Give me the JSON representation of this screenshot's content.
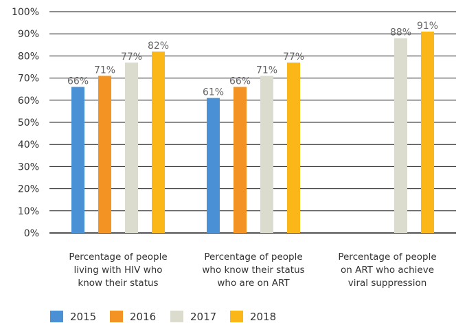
{
  "chart_data": {
    "type": "bar",
    "categories": [
      [
        "Percentage of people",
        "living with HIV who",
        "know their status"
      ],
      [
        "Percentage of people",
        "who know their status",
        "who are on ART"
      ],
      [
        "Percentage of people",
        "on ART who achieve",
        "viral suppression"
      ]
    ],
    "series": [
      {
        "name": "2015",
        "color": "#4a90d4",
        "values": [
          66,
          61,
          null
        ],
        "labels": [
          "66%",
          "61%",
          ""
        ]
      },
      {
        "name": "2016",
        "color": "#f39324",
        "values": [
          71,
          66,
          null
        ],
        "labels": [
          "71%",
          "66%",
          ""
        ]
      },
      {
        "name": "2017",
        "color": "#dcdcce",
        "values": [
          77,
          71,
          88
        ],
        "labels": [
          "77%",
          "71%",
          "88%"
        ]
      },
      {
        "name": "2018",
        "color": "#fbb617",
        "values": [
          82,
          77,
          91
        ],
        "labels": [
          "82%",
          "77%",
          "91%"
        ]
      }
    ],
    "ylim": [
      0,
      100
    ],
    "yticks": [
      "0%",
      "10%",
      "20%",
      "30%",
      "40%",
      "50%",
      "60%",
      "70%",
      "80%",
      "90%",
      "100%"
    ],
    "grid": true,
    "legend": "bottom-left"
  }
}
